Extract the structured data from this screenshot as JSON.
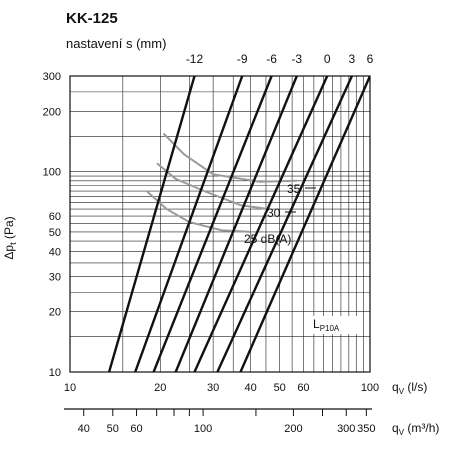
{
  "chart_data": {
    "type": "line",
    "title": "KK-125",
    "subtitle": "nastavení s (mm)",
    "x_scale": "log",
    "y_scale": "log",
    "xlabel": "q_V (l/s)",
    "xlabel_secondary": "q_V (m³/h)",
    "ylabel": "Δp_t (Pa)",
    "xlim": [
      10,
      100
    ],
    "ylim": [
      10,
      300
    ],
    "x_ticks": [
      "10",
      "20",
      "30",
      "40",
      "50",
      "60",
      "100"
    ],
    "x_secondary_ticks": [
      "40",
      "50",
      "60",
      "100",
      "200",
      "300",
      "350"
    ],
    "y_ticks": [
      "10",
      "20",
      "30",
      "40",
      "50",
      "60",
      "100",
      "200",
      "300"
    ],
    "grid": true,
    "setting_labels": [
      "-12",
      "-9",
      "-6",
      "-3",
      "0",
      "3",
      "6"
    ],
    "series": [
      {
        "name": "-12",
        "points": [
          [
            13.5,
            10
          ],
          [
            26.0,
            300
          ]
        ]
      },
      {
        "name": "-9",
        "points": [
          [
            16.5,
            10
          ],
          [
            37.5,
            300
          ]
        ]
      },
      {
        "name": "-6",
        "points": [
          [
            19.0,
            10
          ],
          [
            47.0,
            300
          ]
        ]
      },
      {
        "name": "-3",
        "points": [
          [
            22.5,
            10
          ],
          [
            57.0,
            300
          ]
        ]
      },
      {
        "name": "0",
        "points": [
          [
            26.0,
            10
          ],
          [
            72.0,
            300
          ]
        ]
      },
      {
        "name": "3",
        "points": [
          [
            31.0,
            10
          ],
          [
            87.0,
            300
          ]
        ]
      },
      {
        "name": "6",
        "points": [
          [
            37.0,
            10
          ],
          [
            100.0,
            300
          ]
        ]
      }
    ],
    "noise_curves": [
      {
        "label": "35",
        "points": [
          [
            20.5,
            155
          ],
          [
            24,
            122
          ],
          [
            30,
            97
          ],
          [
            43,
            89
          ],
          [
            57,
            90
          ]
        ]
      },
      {
        "label": "30",
        "points": [
          [
            19.5,
            110
          ],
          [
            22.5,
            92
          ],
          [
            28,
            80
          ],
          [
            37,
            68
          ],
          [
            46,
            65
          ]
        ]
      },
      {
        "label": "25 dB(A)",
        "points": [
          [
            18.0,
            80
          ],
          [
            21,
            65
          ],
          [
            25,
            56
          ],
          [
            32,
            51
          ],
          [
            40,
            50
          ]
        ]
      }
    ],
    "annotation": "L_P10A"
  }
}
